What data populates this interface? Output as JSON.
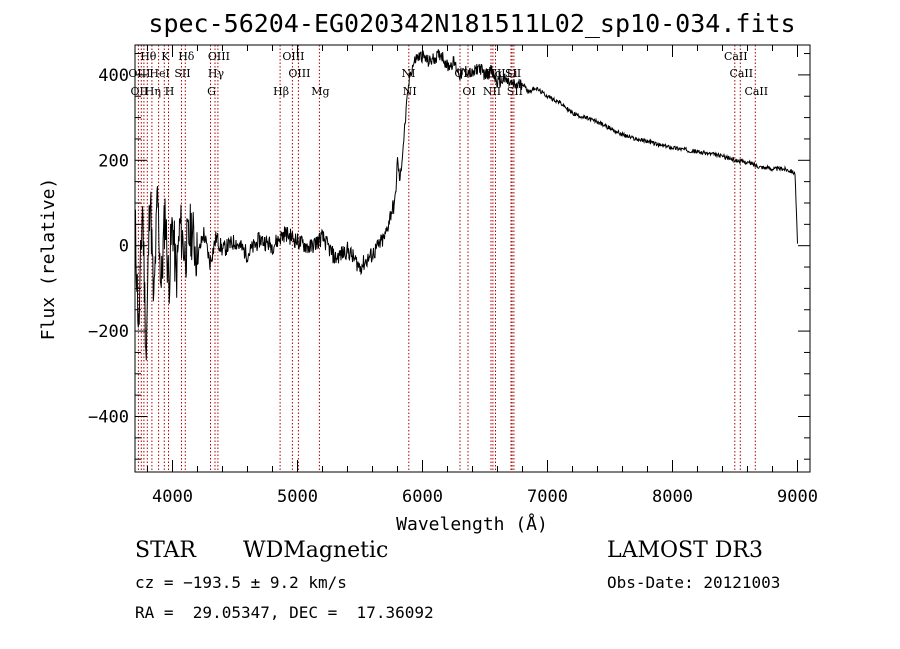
{
  "chart_data": {
    "type": "line",
    "title": "spec-56204-EG020342N181511L02_sp10-034.fits",
    "xlabel": "Wavelength (Å)",
    "ylabel": "Flux (relative)",
    "xlim": [
      3700,
      9100
    ],
    "ylim": [
      -530,
      470
    ],
    "xticks": [
      4000,
      5000,
      6000,
      7000,
      8000,
      9000
    ],
    "xtick_labels": [
      "4000",
      "5000",
      "6000",
      "7000",
      "8000",
      "9000"
    ],
    "yticks": [
      -400,
      -200,
      0,
      200,
      400
    ],
    "ytick_labels": [
      "−400",
      "−200",
      "0",
      "200",
      "400"
    ],
    "series": [
      {
        "name": "flux",
        "x": [
          3700,
          3730,
          3760,
          3790,
          3820,
          3850,
          3880,
          3910,
          3940,
          3970,
          4000,
          4030,
          4060,
          4100,
          4150,
          4200,
          4250,
          4300,
          4350,
          4400,
          4500,
          4600,
          4700,
          4800,
          4900,
          5000,
          5100,
          5200,
          5300,
          5400,
          5500,
          5600,
          5700,
          5750,
          5780,
          5800,
          5820,
          5850,
          5880,
          5900,
          5920,
          5950,
          6000,
          6050,
          6100,
          6150,
          6200,
          6250,
          6300,
          6350,
          6400,
          6450,
          6500,
          6550,
          6600,
          6650,
          6700,
          6750,
          6800,
          6850,
          6900,
          7000,
          7100,
          7200,
          7300,
          7400,
          7500,
          7600,
          7700,
          7800,
          7900,
          8000,
          8100,
          8200,
          8300,
          8400,
          8500,
          8600,
          8700,
          8800,
          8900,
          8950,
          8980,
          9000
        ],
        "y": [
          60,
          -200,
          100,
          -260,
          150,
          -150,
          120,
          -100,
          80,
          -90,
          60,
          -80,
          50,
          -20,
          40,
          -30,
          30,
          -40,
          20,
          -10,
          10,
          -20,
          15,
          0,
          30,
          10,
          -5,
          20,
          -30,
          -10,
          -50,
          -20,
          20,
          80,
          100,
          200,
          150,
          250,
          350,
          400,
          420,
          440,
          445,
          430,
          440,
          450,
          420,
          430,
          400,
          410,
          400,
          420,
          400,
          410,
          380,
          390,
          380,
          375,
          380,
          360,
          370,
          350,
          335,
          310,
          300,
          290,
          275,
          260,
          250,
          245,
          235,
          230,
          225,
          220,
          215,
          210,
          200,
          195,
          185,
          180,
          180,
          175,
          170,
          5
        ]
      }
    ],
    "line_labels": [
      {
        "text": "Hθ",
        "lambda": 3798
      },
      {
        "text": "K",
        "lambda": 3934
      },
      {
        "text": "Hδ",
        "lambda": 4102
      },
      {
        "text": "OIII",
        "lambda": 4363
      },
      {
        "text": "OIII",
        "lambda": 4959
      },
      {
        "text": "CaII",
        "lambda": 8498
      },
      {
        "text": "OIII",
        "lambda": 3727
      },
      {
        "text": "HeI",
        "lambda": 3889
      },
      {
        "text": "SII",
        "lambda": 4072
      },
      {
        "text": "Hγ",
        "lambda": 4340
      },
      {
        "text": "OIII",
        "lambda": 5007
      },
      {
        "text": "NI",
        "lambda": 5880
      },
      {
        "text": "OI",
        "lambda": 6300
      },
      {
        "text": "Hα",
        "lambda": 6563
      },
      {
        "text": "SII",
        "lambda": 6717
      },
      {
        "text": "NII",
        "lambda": 6584
      },
      {
        "text": "Li",
        "lambda": 6708
      },
      {
        "text": "CaII",
        "lambda": 8542
      },
      {
        "text": "OII",
        "lambda": 3727
      },
      {
        "text": "Hη",
        "lambda": 3835
      },
      {
        "text": "H",
        "lambda": 3968
      },
      {
        "text": "G",
        "lambda": 4304
      },
      {
        "text": "Hβ",
        "lambda": 4861
      },
      {
        "text": "Mg",
        "lambda": 5175
      },
      {
        "text": "NI",
        "lambda": 5890
      },
      {
        "text": "OI",
        "lambda": 6364
      },
      {
        "text": "NII",
        "lambda": 6548
      },
      {
        "text": "SII",
        "lambda": 6731
      },
      {
        "text": "CaII",
        "lambda": 8662
      }
    ],
    "line_markers": [
      3727,
      3750,
      3771,
      3798,
      3835,
      3889,
      3934,
      3968,
      4072,
      4102,
      4304,
      4340,
      4363,
      4861,
      4959,
      5007,
      5175,
      5890,
      6300,
      6364,
      6548,
      6563,
      6584,
      6708,
      6717,
      6731,
      8498,
      8542,
      8662
    ]
  },
  "info": {
    "obj_class": "STAR",
    "subclass": "WDMagnetic",
    "survey": "LAMOST DR3",
    "cz": "cz = −193.5 ± 9.2 km/s",
    "obs_date": "Obs-Date: 20121003",
    "radec": "RA =  29.05347, DEC =  17.36092"
  },
  "colors": {
    "line": "#000000",
    "marker": "#b00000"
  }
}
